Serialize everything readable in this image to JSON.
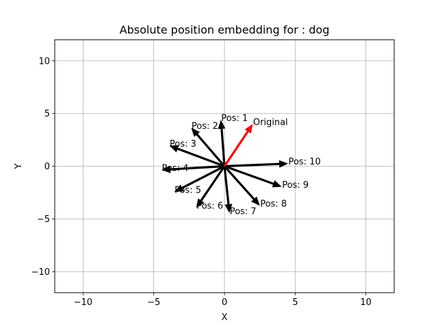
{
  "chart_data": {
    "type": "quiver",
    "title": "Absolute position embedding for : dog",
    "xlabel": "X",
    "ylabel": "Y",
    "xlim": [
      -12,
      12
    ],
    "ylim": [
      -12,
      12
    ],
    "xticks": [
      -10,
      -5,
      0,
      5,
      10
    ],
    "yticks": [
      -10,
      -5,
      0,
      5,
      10
    ],
    "tick_labels_x": [
      "−10",
      "−5",
      "0",
      "5",
      "10"
    ],
    "tick_labels_y": [
      "−10",
      "−5",
      "0",
      "5",
      "10"
    ],
    "grid": true,
    "origin": [
      0,
      0
    ],
    "vectors": [
      {
        "label": "Original",
        "x": 2.0,
        "y": 4.0,
        "color": "#ff0000"
      },
      {
        "label": "Pos: 1",
        "x": -0.25,
        "y": 4.4,
        "color": "#000000"
      },
      {
        "label": "Pos: 2",
        "x": -2.35,
        "y": 3.65,
        "color": "#000000"
      },
      {
        "label": "Pos: 3",
        "x": -3.9,
        "y": 1.95,
        "color": "#000000"
      },
      {
        "label": "Pos: 4",
        "x": -4.45,
        "y": -0.35,
        "color": "#000000"
      },
      {
        "label": "Pos: 5",
        "x": -3.55,
        "y": -2.45,
        "color": "#000000"
      },
      {
        "label": "Pos: 6",
        "x": -2.0,
        "y": -3.95,
        "color": "#000000"
      },
      {
        "label": "Pos: 7",
        "x": 0.35,
        "y": -4.45,
        "color": "#000000"
      },
      {
        "label": "Pos: 8",
        "x": 2.5,
        "y": -3.75,
        "color": "#000000"
      },
      {
        "label": "Pos: 9",
        "x": 4.05,
        "y": -1.95,
        "color": "#000000"
      },
      {
        "label": "Pos: 10",
        "x": 4.5,
        "y": 0.25,
        "color": "#000000"
      }
    ]
  }
}
